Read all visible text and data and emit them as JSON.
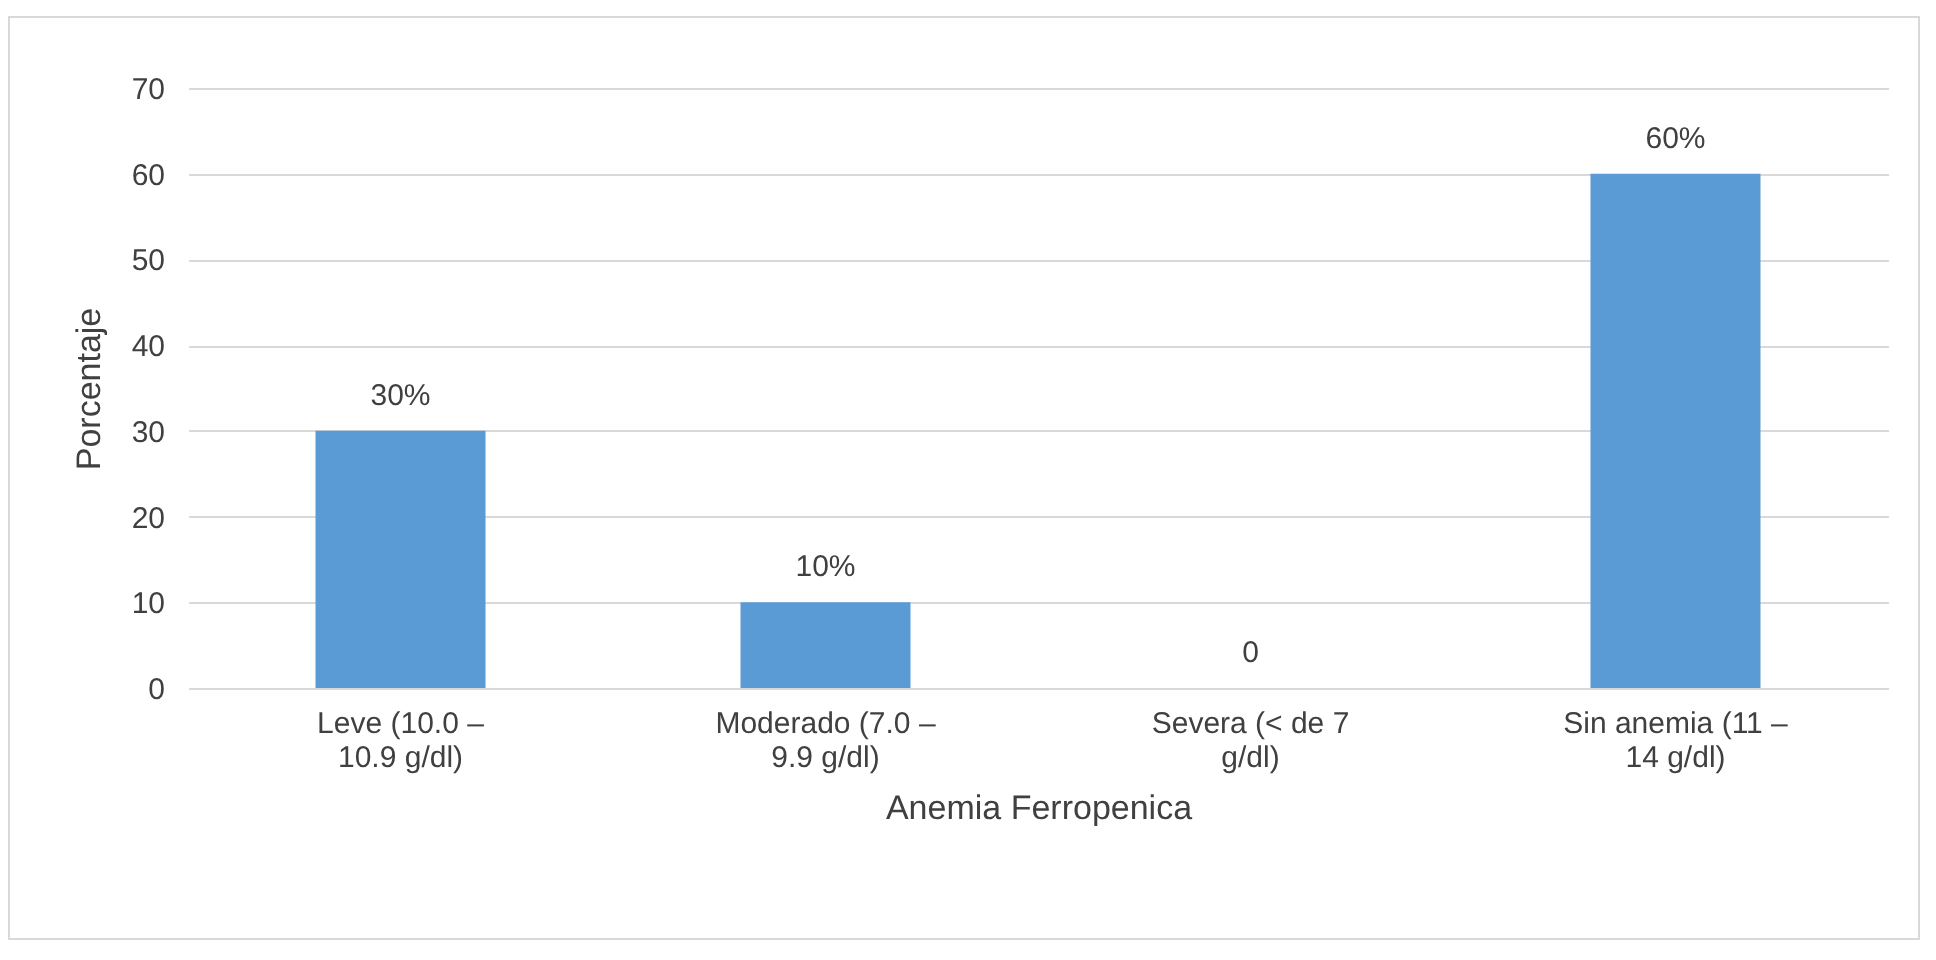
{
  "chart_data": {
    "type": "bar",
    "xlabel": "Anemia Ferropenica",
    "ylabel": "Porcentaje",
    "categories": [
      "Leve (10.0 – 10.9 g/dl)",
      "Moderado (7.0 – 9.9 g/dl)",
      "Severa (< de 7 g/dl)",
      "Sin anemia (11 – 14 g/dl)"
    ],
    "values": [
      30,
      10,
      0,
      60
    ],
    "value_labels": [
      "30%",
      "10%",
      "0",
      "60%"
    ],
    "color": "#5b9bd5",
    "ylim": [
      0,
      70
    ],
    "yticks": [
      0,
      10,
      20,
      30,
      40,
      50,
      60,
      70
    ],
    "grid": "y"
  }
}
